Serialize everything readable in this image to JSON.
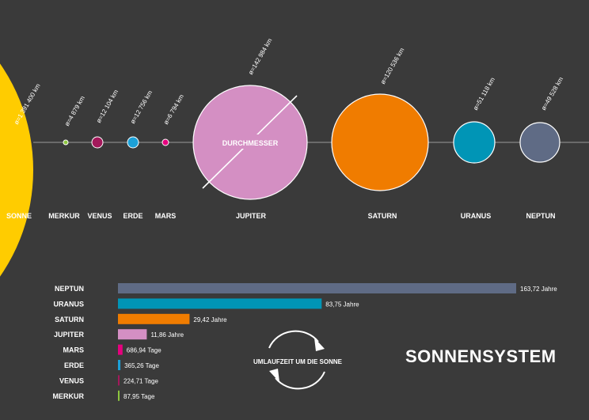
{
  "title": "SONNENSYSTEM",
  "diameter_label": "DURCHMESSER",
  "orbit_label": "UMLAUFZEIT UM DIE SONNE",
  "bodies": [
    {
      "name": "SONNE",
      "diameter": "ø=1 391 400 km",
      "color": "#ffcc00"
    },
    {
      "name": "MERKUR",
      "diameter": "ø=4 879 km",
      "color": "#8dc63f"
    },
    {
      "name": "VENUS",
      "diameter": "ø=12 104 km",
      "color": "#a3195b"
    },
    {
      "name": "ERDE",
      "diameter": "ø=12 756 km",
      "color": "#1ca0d7"
    },
    {
      "name": "MARS",
      "diameter": "ø=6 794 km",
      "color": "#e6007e"
    },
    {
      "name": "JUPITER",
      "diameter": "ø=142 984 km",
      "color": "#d48fc3"
    },
    {
      "name": "SATURN",
      "diameter": "ø=120 536 km",
      "color": "#f07c00"
    },
    {
      "name": "URANUS",
      "diameter": "ø=51 118 km",
      "color": "#0095b6"
    },
    {
      "name": "NEPTUN",
      "diameter": "ø=49 528 km",
      "color": "#5f6b85"
    }
  ],
  "chart_data": {
    "type": "bar",
    "orientation": "horizontal",
    "title": "UMLAUFZEIT UM DIE SONNE",
    "categories": [
      "NEPTUN",
      "URANUS",
      "SATURN",
      "JUPITER",
      "MARS",
      "ERDE",
      "VENUS",
      "MERKUR"
    ],
    "values_years": [
      163.72,
      83.75,
      29.42,
      11.86,
      1.8808,
      1.0001,
      0.6152,
      0.2407
    ],
    "value_labels": [
      "163,72 Jahre",
      "83,75 Jahre",
      "29,42 Jahre",
      "11,86 Jahre",
      "686,94 Tage",
      "365,26 Tage",
      "224,71 Tage",
      "87,95 Tage"
    ],
    "colors": [
      "#5f6b85",
      "#0095b6",
      "#f07c00",
      "#d48fc3",
      "#e6007e",
      "#1ca0d7",
      "#a3195b",
      "#8dc63f"
    ],
    "xlim": [
      0,
      163.72
    ],
    "grid": false
  }
}
